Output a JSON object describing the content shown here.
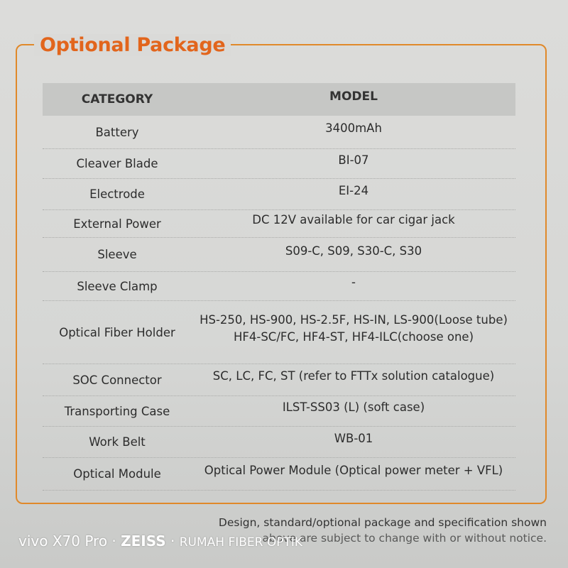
{
  "title": "Optional Package",
  "table": {
    "headers": [
      "CATEGORY",
      "MODEL"
    ],
    "rows": [
      {
        "category": "Battery",
        "model": "3400mAh"
      },
      {
        "category": "Cleaver Blade",
        "model": "BI-07"
      },
      {
        "category": "Electrode",
        "model": "EI-24"
      },
      {
        "category": "External Power",
        "model": "DC 12V available for car cigar jack"
      },
      {
        "category": "Sleeve",
        "model": "S09-C, S09, S30-C, S30"
      },
      {
        "category": "Sleeve Clamp",
        "model": "-"
      },
      {
        "category": "Optical Fiber Holder",
        "model": "HS-250, HS-900, HS-2.5F, HS-IN, LS-900(Loose tube)",
        "model2": "HF4-SC/FC, HF4-ST, HF4-ILC(choose one)"
      },
      {
        "category": "SOC Connector",
        "model": "SC, LC, FC, ST (refer to FTTx solution catalogue)"
      },
      {
        "category": "Transporting Case",
        "model": "ILST-SS03 (L) (soft case)"
      },
      {
        "category": "Work Belt",
        "model": "WB-01"
      },
      {
        "category": "Optical Module",
        "model": "Optical Power Module (Optical power meter + VFL)"
      }
    ]
  },
  "footnote": {
    "line1": "Design, standard/optional package and specification shown",
    "line2": "above are subject to change with or without notice."
  },
  "watermark": {
    "device": "vivo X70 Pro",
    "brand": "ZEISS",
    "owner": "RUMAH FIBER OPTIK"
  },
  "colors": {
    "accent": "#e2651c",
    "frame": "#e0892a"
  }
}
